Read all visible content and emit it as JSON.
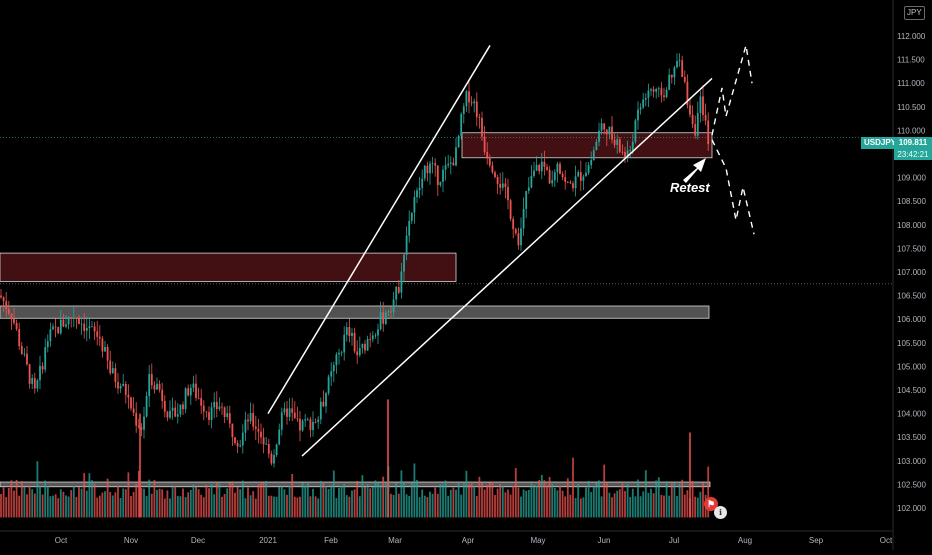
{
  "chart_data": {
    "type": "candlestick",
    "symbol": "USDJPY",
    "currency": "JPY",
    "last_price": "109.811",
    "countdown": "23:42:21",
    "annotation": "Retest",
    "ylim": [
      101.8,
      112.4
    ],
    "y_ticks": [
      "112.000",
      "111.500",
      "111.000",
      "110.500",
      "110.000",
      "109.500",
      "109.000",
      "108.500",
      "108.000",
      "107.500",
      "107.000",
      "106.500",
      "106.000",
      "105.500",
      "105.000",
      "104.500",
      "104.000",
      "103.500",
      "103.000",
      "102.500",
      "102.000"
    ],
    "x_months": [
      "Oct",
      "Nov",
      "Dec",
      "2021",
      "Feb",
      "Mar",
      "Apr",
      "May",
      "Jun",
      "Jul",
      "Aug",
      "Sep",
      "Oct"
    ],
    "price_path": [
      [
        0,
        106.5
      ],
      [
        12,
        106.1
      ],
      [
        22,
        105.3
      ],
      [
        35,
        104.4
      ],
      [
        48,
        105.6
      ],
      [
        62,
        105.9
      ],
      [
        75,
        106.1
      ],
      [
        88,
        105.8
      ],
      [
        100,
        105.6
      ],
      [
        110,
        104.9
      ],
      [
        125,
        104.5
      ],
      [
        135,
        103.9
      ],
      [
        142,
        103.7
      ],
      [
        150,
        104.8
      ],
      [
        160,
        104.5
      ],
      [
        170,
        103.9
      ],
      [
        180,
        104.1
      ],
      [
        190,
        104.6
      ],
      [
        200,
        104.3
      ],
      [
        210,
        104.0
      ],
      [
        220,
        104.2
      ],
      [
        230,
        103.7
      ],
      [
        240,
        103.4
      ],
      [
        248,
        103.9
      ],
      [
        258,
        103.7
      ],
      [
        266,
        103.3
      ],
      [
        272,
        103.0
      ],
      [
        280,
        103.8
      ],
      [
        288,
        104.1
      ],
      [
        298,
        103.7
      ],
      [
        308,
        103.8
      ],
      [
        318,
        103.9
      ],
      [
        328,
        104.6
      ],
      [
        338,
        105.2
      ],
      [
        348,
        105.8
      ],
      [
        358,
        105.2
      ],
      [
        368,
        105.6
      ],
      [
        378,
        105.9
      ],
      [
        388,
        106.2
      ],
      [
        398,
        106.6
      ],
      [
        403,
        107.4
      ],
      [
        410,
        108.2
      ],
      [
        418,
        108.7
      ],
      [
        428,
        109.3
      ],
      [
        438,
        109.0
      ],
      [
        448,
        109.2
      ],
      [
        456,
        109.5
      ],
      [
        462,
        110.3
      ],
      [
        468,
        110.8
      ],
      [
        476,
        110.5
      ],
      [
        484,
        109.7
      ],
      [
        492,
        109.3
      ],
      [
        500,
        108.9
      ],
      [
        508,
        108.5
      ],
      [
        516,
        107.8
      ],
      [
        520,
        107.7
      ],
      [
        526,
        108.6
      ],
      [
        534,
        109.1
      ],
      [
        542,
        109.3
      ],
      [
        550,
        109.0
      ],
      [
        558,
        109.4
      ],
      [
        566,
        108.8
      ],
      [
        574,
        108.9
      ],
      [
        582,
        109.1
      ],
      [
        590,
        109.3
      ],
      [
        598,
        109.9
      ],
      [
        604,
        110.2
      ],
      [
        612,
        109.8
      ],
      [
        620,
        109.6
      ],
      [
        628,
        109.4
      ],
      [
        634,
        110.0
      ],
      [
        642,
        110.6
      ],
      [
        650,
        110.9
      ],
      [
        658,
        110.7
      ],
      [
        666,
        110.9
      ],
      [
        672,
        111.1
      ],
      [
        678,
        111.5
      ],
      [
        684,
        111.0
      ],
      [
        690,
        110.4
      ],
      [
        696,
        110.0
      ],
      [
        700,
        110.6
      ],
      [
        705,
        110.1
      ],
      [
        709,
        109.8
      ]
    ],
    "up_color": "#26a69a",
    "down_color": "#ef5350",
    "zones": [
      {
        "from": 107.4,
        "to": 106.8,
        "x_end": 456,
        "color": "rgba(120,30,35,0.55)"
      },
      {
        "from": 106.28,
        "to": 106.02,
        "x_end": 709,
        "color": "rgba(150,150,150,0.55)"
      },
      {
        "from": 109.95,
        "to": 109.42,
        "x_start": 462,
        "x_end": 712,
        "color": "rgba(120,30,35,0.55)"
      },
      {
        "from": 102.55,
        "to": 102.45,
        "x_end": 710,
        "color": "rgba(160,160,160,0.55)"
      }
    ],
    "dotted_lines": [
      109.85,
      106.75
    ],
    "trend_lines": [
      {
        "x1": 268,
        "y1": 104.0,
        "x2": 490,
        "y2": 111.8
      },
      {
        "x1": 302,
        "y1": 103.1,
        "x2": 712,
        "y2": 111.1
      }
    ],
    "volume_spikes": [
      [
        140,
        104.0
      ],
      [
        388,
        104.3
      ],
      [
        690,
        103.6
      ]
    ]
  }
}
